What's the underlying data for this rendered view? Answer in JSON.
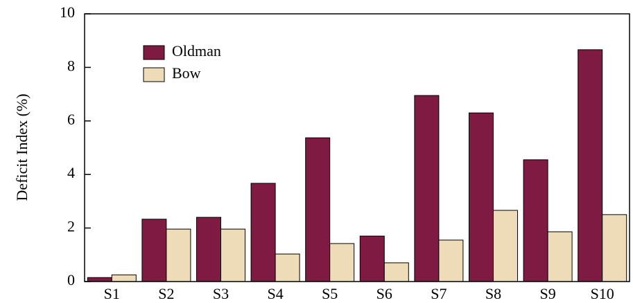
{
  "chart_data": {
    "type": "bar",
    "y_label": "Deficit Index (%)",
    "categories": [
      "S1",
      "S2",
      "S3",
      "S4",
      "S5",
      "S6",
      "S7",
      "S8",
      "S9",
      "S10"
    ],
    "series": [
      {
        "name": "Oldman",
        "color": "#7f1a42",
        "values": [
          0.15,
          2.33,
          2.4,
          3.67,
          5.37,
          1.7,
          6.95,
          6.3,
          4.55,
          8.66
        ]
      },
      {
        "name": "Bow",
        "color": "#eedcb8",
        "values": [
          0.25,
          1.96,
          1.96,
          1.03,
          1.42,
          0.7,
          1.55,
          2.66,
          1.86,
          2.5
        ]
      }
    ],
    "ylim": [
      0,
      10
    ],
    "yticks": [
      0,
      2,
      4,
      6,
      8,
      10
    ],
    "legend": "upper-left",
    "grid": false
  }
}
